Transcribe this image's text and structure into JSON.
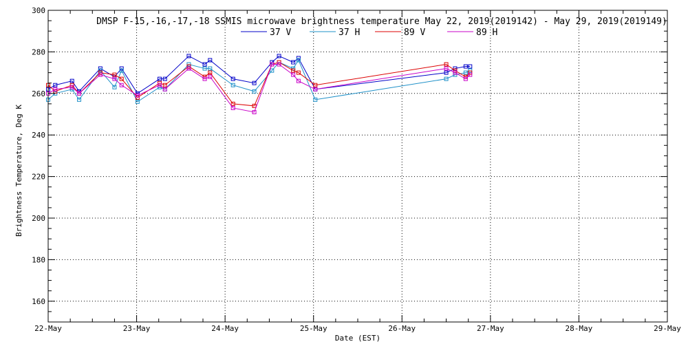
{
  "chart_data": {
    "type": "line",
    "title": "DMSP F-15,-16,-17,-18 SSMIS microwave brightness temperature May 22, 2019(2019142) - May 29, 2019(2019149)",
    "xlabel": "Date (EST)",
    "ylabel": "Brightness Temperature, Deg K",
    "x_tick_labels": [
      "22-May",
      "23-May",
      "24-May",
      "25-May",
      "26-May",
      "27-May",
      "28-May",
      "29-May"
    ],
    "xlim_days": [
      0,
      7
    ],
    "ylim": [
      150,
      300
    ],
    "y_ticks": [
      160,
      180,
      200,
      220,
      240,
      260,
      280,
      300
    ],
    "grid": true,
    "legend_position": "top",
    "x": [
      0.0,
      0.08,
      0.27,
      0.35,
      0.59,
      0.75,
      0.83,
      1.01,
      1.26,
      1.32,
      1.59,
      1.77,
      1.83,
      2.09,
      2.33,
      2.53,
      2.61,
      2.77,
      2.83,
      3.02,
      4.5,
      4.6,
      4.72,
      4.77
    ],
    "series": [
      {
        "name": "37 V",
        "color": "#0000c8",
        "values": [
          262,
          264,
          266,
          261,
          272,
          268,
          272,
          260,
          267,
          267,
          278,
          274,
          276,
          267,
          265,
          275,
          278,
          275,
          277,
          262,
          270,
          272,
          273,
          273
        ]
      },
      {
        "name": "37 H",
        "color": "#1e90c8",
        "values": [
          257,
          260,
          262,
          257,
          271,
          263,
          271,
          256,
          263,
          262,
          274,
          272,
          272,
          264,
          261,
          271,
          275,
          272,
          276,
          257,
          267,
          269,
          270,
          271
        ]
      },
      {
        "name": "89 V",
        "color": "#dc0000",
        "values": [
          264,
          261,
          264,
          260,
          270,
          269,
          267,
          258,
          265,
          264,
          273,
          268,
          270,
          255,
          254,
          274,
          275,
          271,
          270,
          264,
          274,
          271,
          268,
          270
        ]
      },
      {
        "name": "89 H",
        "color": "#c800c8",
        "values": [
          260,
          262,
          263,
          260,
          269,
          267,
          264,
          259,
          264,
          262,
          272,
          267,
          268,
          253,
          251,
          274,
          274,
          269,
          266,
          262,
          272,
          270,
          267,
          269
        ]
      }
    ]
  }
}
